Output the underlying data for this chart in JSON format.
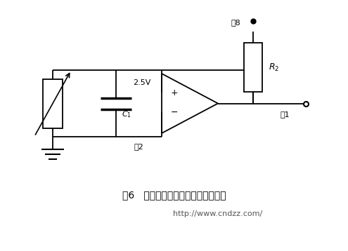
{
  "title": "图6   改变误差放大器增益的等效电路",
  "website": "http://www.cndzz.com/",
  "label_25v": "2.5V",
  "label_c1": "$C_1$",
  "label_r2": "$R_2$",
  "label_pin1": "脚1",
  "label_pin2": "脚2",
  "label_pin8": "脚8",
  "bg_color": "#ffffff",
  "line_color": "#000000",
  "fig_width": 4.95,
  "fig_height": 3.58,
  "dpi": 100
}
